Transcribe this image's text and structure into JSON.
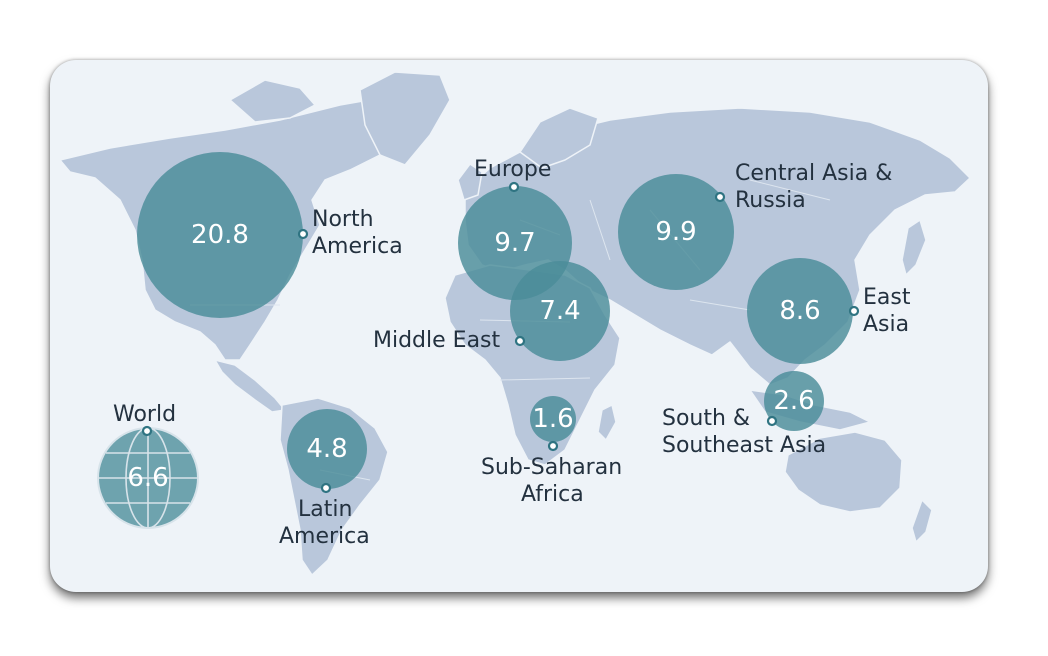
{
  "map": {
    "regions": [
      {
        "id": "north-america",
        "label_lines": [
          "North",
          "America"
        ],
        "value": "20.8"
      },
      {
        "id": "europe",
        "label_lines": [
          "Europe"
        ],
        "value": "9.7"
      },
      {
        "id": "central-asia-russia",
        "label_lines": [
          "Central Asia &",
          "Russia"
        ],
        "value": "9.9"
      },
      {
        "id": "middle-east",
        "label_lines": [
          "Middle East"
        ],
        "value": "7.4"
      },
      {
        "id": "east-asia",
        "label_lines": [
          "East",
          "Asia"
        ],
        "value": "8.6"
      },
      {
        "id": "south-southeast-asia",
        "label_lines": [
          "South &",
          "Southeast Asia"
        ],
        "value": "2.6"
      },
      {
        "id": "sub-saharan-africa",
        "label_lines": [
          "Sub-Saharan",
          "Africa"
        ],
        "value": "1.6"
      },
      {
        "id": "latin-america",
        "label_lines": [
          "Latin",
          "America"
        ],
        "value": "4.8"
      },
      {
        "id": "world",
        "label_lines": [
          "World"
        ],
        "value": "6.6"
      }
    ],
    "colors": {
      "bubble": "#4a8c98",
      "land": "#b9c7db",
      "ocean": "#eef3f8"
    }
  }
}
